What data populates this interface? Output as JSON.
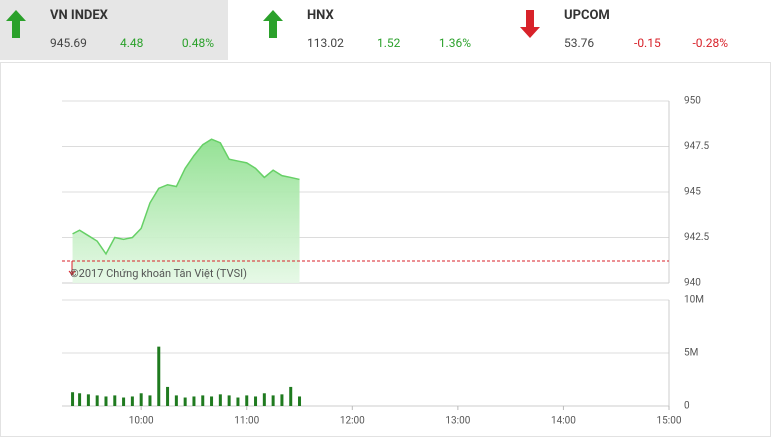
{
  "indices": [
    {
      "name": "VN INDEX",
      "value": "945.69",
      "change": "4.48",
      "percent": "0.48%",
      "direction": "up"
    },
    {
      "name": "HNX",
      "value": "113.02",
      "change": "1.52",
      "percent": "1.36%",
      "direction": "up"
    },
    {
      "name": "UPCOM",
      "value": "53.76",
      "change": "-0.15",
      "percent": "-0.28%",
      "direction": "down"
    }
  ],
  "chart_data": [
    {
      "type": "area",
      "annotation": "©2017 Chứng khoán Tân Việt (TVSI)",
      "x": [
        "09:21",
        "09:25",
        "09:30",
        "09:35",
        "09:40",
        "09:45",
        "09:50",
        "09:55",
        "10:00",
        "10:05",
        "10:10",
        "10:15",
        "10:20",
        "10:25",
        "10:30",
        "10:35",
        "10:40",
        "10:45",
        "10:50",
        "10:55",
        "11:00",
        "11:05",
        "11:10",
        "11:15",
        "11:20",
        "11:25",
        "11:30"
      ],
      "values": [
        942.7,
        942.9,
        942.6,
        942.3,
        941.6,
        942.5,
        942.4,
        942.5,
        943.0,
        944.4,
        945.2,
        945.4,
        945.3,
        946.3,
        947.0,
        947.6,
        947.9,
        947.7,
        946.8,
        946.7,
        946.6,
        946.3,
        945.8,
        946.2,
        945.9,
        945.8,
        945.69
      ],
      "color": "#66d066",
      "reference": 941.21,
      "reference_color": "#d8222a",
      "xlim": [
        "09:15",
        "15:00"
      ],
      "ylim": [
        940,
        950
      ],
      "yticks": [
        940,
        942.5,
        945,
        947.5,
        950
      ],
      "grid": true
    },
    {
      "type": "bar",
      "x": [
        "09:21",
        "09:25",
        "09:30",
        "09:35",
        "09:40",
        "09:45",
        "09:50",
        "09:55",
        "10:00",
        "10:05",
        "10:10",
        "10:15",
        "10:20",
        "10:25",
        "10:30",
        "10:35",
        "10:40",
        "10:45",
        "10:50",
        "10:55",
        "11:00",
        "11:05",
        "11:10",
        "11:15",
        "11:20",
        "11:25",
        "11:30"
      ],
      "values": [
        1300000,
        1200000,
        1100000,
        1000000,
        900000,
        1000000,
        800000,
        900000,
        1200000,
        1000000,
        5600000,
        1800000,
        1000000,
        800000,
        900000,
        1000000,
        900000,
        1100000,
        1000000,
        800000,
        1000000,
        900000,
        1200000,
        1000000,
        1100000,
        1800000,
        900000
      ],
      "color": "#1f7a1f",
      "xlim": [
        "09:15",
        "15:00"
      ],
      "ylim": [
        0,
        10000000
      ],
      "yticks": [
        0,
        {
          "value": 5000000,
          "label": "5M"
        },
        {
          "value": 10000000,
          "label": "10M"
        }
      ],
      "xticks": [
        "10:00",
        "11:00",
        "12:00",
        "13:00",
        "14:00",
        "15:00"
      ],
      "grid": true
    }
  ]
}
